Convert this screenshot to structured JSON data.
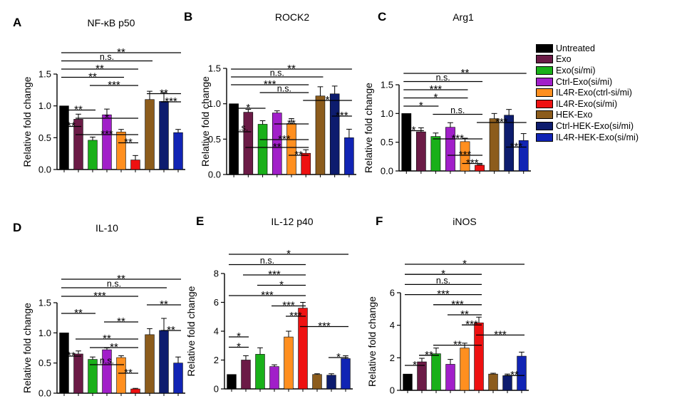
{
  "chart_data": [
    {
      "type": "bar",
      "panel_letter": "A",
      "title": "NF-κB p50",
      "ylabel": "Relative fold change",
      "ylim": [
        0,
        1.5
      ],
      "yticks": [
        "0.0",
        "0.5",
        "1.0",
        "1.5"
      ],
      "values": [
        1.0,
        0.79,
        0.46,
        0.86,
        0.59,
        0.15,
        1.1,
        1.07,
        0.58
      ],
      "errors": [
        0,
        0.08,
        0.05,
        0.09,
        0.04,
        0.07,
        0.13,
        0.14,
        0.05
      ],
      "significance": [
        {
          "a": 1,
          "b": 9,
          "label": "**"
        },
        {
          "a": 1,
          "b": 7,
          "label": "n.s."
        },
        {
          "a": 1,
          "b": 6,
          "label": "**"
        },
        {
          "a": 1,
          "b": 5,
          "label": "**"
        },
        {
          "a": 3,
          "b": 6,
          "label": "***"
        },
        {
          "a": 7,
          "b": 9,
          "label": "**"
        },
        {
          "a": 8,
          "b": 9,
          "label": "***"
        },
        {
          "a": 1,
          "b": 3,
          "label": "**"
        },
        {
          "a": 2,
          "b": 6,
          "label": "*"
        },
        {
          "a": 1,
          "b": 2,
          "label": "**"
        },
        {
          "a": 2,
          "b": 6,
          "label": "***"
        },
        {
          "a": 5,
          "b": 6,
          "label": "**"
        }
      ]
    },
    {
      "type": "bar",
      "panel_letter": "B",
      "title": "ROCK2",
      "ylabel": "Relative fold change",
      "ylim": [
        0,
        1.5
      ],
      "yticks": [
        "0.0",
        "0.5",
        "1.0",
        "1.5"
      ],
      "values": [
        1.0,
        0.88,
        0.71,
        0.87,
        0.72,
        0.3,
        1.11,
        1.14,
        0.52
      ],
      "errors": [
        0,
        0.04,
        0.05,
        0.03,
        0.07,
        0.05,
        0.13,
        0.11,
        0.12
      ],
      "significance": [
        {
          "a": 1,
          "b": 9,
          "label": "**"
        },
        {
          "a": 1,
          "b": 7,
          "label": "n.s."
        },
        {
          "a": 1,
          "b": 6,
          "label": "***"
        },
        {
          "a": 3,
          "b": 6,
          "label": "n.s."
        },
        {
          "a": 6,
          "b": 9,
          "label": "*"
        },
        {
          "a": 1,
          "b": 3,
          "label": "*"
        },
        {
          "a": 8,
          "b": 9,
          "label": "***"
        },
        {
          "a": 4,
          "b": 6,
          "label": "**"
        },
        {
          "a": 1,
          "b": 2,
          "label": "n.s."
        },
        {
          "a": 3,
          "b": 6,
          "label": "***"
        },
        {
          "a": 2,
          "b": 6,
          "label": "**"
        },
        {
          "a": 5,
          "b": 6,
          "label": "**"
        }
      ]
    },
    {
      "type": "bar",
      "panel_letter": "C",
      "title": "Arg1",
      "ylabel": "Relative fold change",
      "ylim": [
        0,
        1.5
      ],
      "yticks": [
        "0.0",
        "0.5",
        "1.0",
        "1.5"
      ],
      "values": [
        1.0,
        0.68,
        0.6,
        0.76,
        0.51,
        0.1,
        0.91,
        0.97,
        0.53
      ],
      "errors": [
        0,
        0.07,
        0.06,
        0.08,
        0.06,
        0.01,
        0.09,
        0.1,
        0.12
      ],
      "significance": [
        {
          "a": 1,
          "b": 9,
          "label": "**"
        },
        {
          "a": 1,
          "b": 6,
          "label": "n.s."
        },
        {
          "a": 1,
          "b": 5,
          "label": "***"
        },
        {
          "a": 1,
          "b": 5,
          "label": "*"
        },
        {
          "a": 1,
          "b": 3,
          "label": "*"
        },
        {
          "a": 3,
          "b": 6,
          "label": "n.s."
        },
        {
          "a": 6,
          "b": 9,
          "label": "***"
        },
        {
          "a": 1,
          "b": 2,
          "label": "*"
        },
        {
          "a": 3,
          "b": 6,
          "label": "***"
        },
        {
          "a": 8,
          "b": 9,
          "label": "***"
        },
        {
          "a": 4,
          "b": 6,
          "label": "***"
        },
        {
          "a": 5,
          "b": 6,
          "label": "***"
        }
      ]
    },
    {
      "type": "bar",
      "panel_letter": "D",
      "title": "IL-10",
      "ylabel": "Relative fold change",
      "ylim": [
        0,
        1.5
      ],
      "yticks": [
        "0.0",
        "0.5",
        "1.0",
        "1.5"
      ],
      "values": [
        1.0,
        0.65,
        0.56,
        0.72,
        0.59,
        0.07,
        0.97,
        1.04,
        0.5
      ],
      "errors": [
        0,
        0.05,
        0.04,
        0.03,
        0.03,
        0.01,
        0.1,
        0.2,
        0.1
      ],
      "significance": [
        {
          "a": 1,
          "b": 9,
          "label": "**"
        },
        {
          "a": 1,
          "b": 8,
          "label": "n.s."
        },
        {
          "a": 1,
          "b": 6,
          "label": "***"
        },
        {
          "a": 7,
          "b": 9,
          "label": "**"
        },
        {
          "a": 1,
          "b": 3,
          "label": "**"
        },
        {
          "a": 4,
          "b": 6,
          "label": "**"
        },
        {
          "a": 8,
          "b": 9,
          "label": "**"
        },
        {
          "a": 2,
          "b": 6,
          "label": "**"
        },
        {
          "a": 3,
          "b": 6,
          "label": "**"
        },
        {
          "a": 1,
          "b": 2,
          "label": "**"
        },
        {
          "a": 3,
          "b": 5,
          "label": "n.s."
        },
        {
          "a": 5,
          "b": 6,
          "label": "**"
        }
      ]
    },
    {
      "type": "bar",
      "panel_letter": "E",
      "title": "IL-12 p40",
      "ylabel": "Relative fold change",
      "ylim": [
        0,
        8
      ],
      "yticks": [
        "0",
        "2",
        "4",
        "6",
        "8"
      ],
      "values": [
        1.0,
        2.0,
        2.4,
        1.55,
        3.6,
        5.6,
        1.0,
        0.95,
        2.1
      ],
      "errors": [
        0,
        0.3,
        0.45,
        0.12,
        0.4,
        0.4,
        0.05,
        0.1,
        0.2
      ],
      "significance": [
        {
          "a": 1,
          "b": 9,
          "label": "*"
        },
        {
          "a": 1,
          "b": 6,
          "label": "n.s."
        },
        {
          "a": 2,
          "b": 6,
          "label": "***"
        },
        {
          "a": 3,
          "b": 6,
          "label": "*"
        },
        {
          "a": 1,
          "b": 6,
          "label": "***"
        },
        {
          "a": 4,
          "b": 6,
          "label": "***"
        },
        {
          "a": 5,
          "b": 6,
          "label": "***"
        },
        {
          "a": 6,
          "b": 9,
          "label": "***"
        },
        {
          "a": 1,
          "b": 2,
          "label": "*"
        },
        {
          "a": 1,
          "b": 2,
          "label": "*"
        },
        {
          "a": 8,
          "b": 9,
          "label": "*"
        }
      ]
    },
    {
      "type": "bar",
      "panel_letter": "F",
      "title": "iNOS",
      "ylabel": "Relative fold change",
      "ylim": [
        0,
        6
      ],
      "yticks": [
        "0",
        "2",
        "4",
        "6"
      ],
      "values": [
        1.0,
        1.75,
        2.25,
        1.6,
        2.6,
        4.15,
        1.0,
        0.9,
        2.1
      ],
      "errors": [
        0,
        0.22,
        0.35,
        0.3,
        0.3,
        0.35,
        0.05,
        0.1,
        0.25
      ],
      "significance": [
        {
          "a": 1,
          "b": 9,
          "label": "*"
        },
        {
          "a": 1,
          "b": 6,
          "label": "*"
        },
        {
          "a": 1,
          "b": 6,
          "label": "n.s."
        },
        {
          "a": 1,
          "b": 6,
          "label": "***"
        },
        {
          "a": 3,
          "b": 6,
          "label": "***"
        },
        {
          "a": 4,
          "b": 6,
          "label": "**"
        },
        {
          "a": 5,
          "b": 6,
          "label": "***"
        },
        {
          "a": 6,
          "b": 9,
          "label": "***"
        },
        {
          "a": 3,
          "b": 6,
          "label": "**"
        },
        {
          "a": 2,
          "b": 3,
          "label": "**"
        },
        {
          "a": 1,
          "b": 2,
          "label": "*"
        },
        {
          "a": 8,
          "b": 9,
          "label": "**"
        }
      ]
    }
  ],
  "legend": [
    {
      "label": "Untreated",
      "color": "#000000"
    },
    {
      "label": "Exo",
      "color": "#6b1b46"
    },
    {
      "label": "Exo(si/mi)",
      "color": "#19b019"
    },
    {
      "label": "Ctrl-Exo(si/mi)",
      "color": "#a11fc9"
    },
    {
      "label": "IL4R-Exo(ctrl-si/mi)",
      "color": "#ff8f1f"
    },
    {
      "label": "IL4R-Exo(si/mi)",
      "color": "#ee1111"
    },
    {
      "label": "HEK-Exo",
      "color": "#8c5c1c"
    },
    {
      "label": "Ctrl-HEK-Exo(si/mi)",
      "color": "#0d1c6e"
    },
    {
      "label": "IL4R-HEK-Exo(si/mi)",
      "color": "#1124b4"
    }
  ]
}
